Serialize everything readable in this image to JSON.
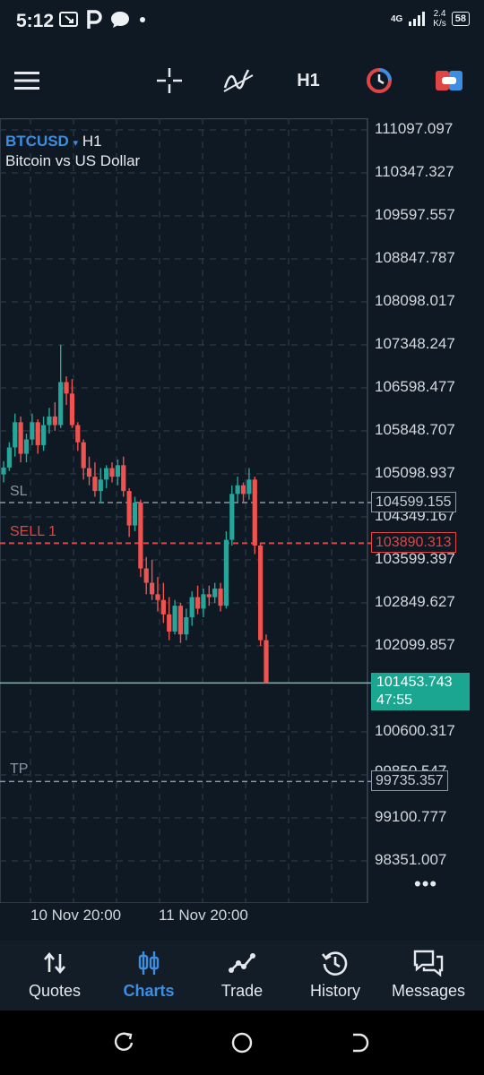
{
  "status_bar": {
    "time": "5:12",
    "network_type": "4G",
    "speed_value": "2.4",
    "speed_unit": "K/s",
    "battery": "58"
  },
  "toolbar": {
    "timeframe": "H1"
  },
  "chart": {
    "symbol": "BTCUSD",
    "symbol_caret": "▾",
    "timeframe": "H1",
    "description": "Bitcoin vs US Dollar",
    "sl_label": "SL",
    "sell_label": "SELL 1",
    "tp_label": "TP",
    "sl_price": "104599.155",
    "sell_price": "103890.313",
    "tp_price": "99735.357",
    "current_price": "101453.743",
    "countdown": "47:55",
    "more": "•••"
  },
  "chart_data": {
    "type": "candlestick",
    "y_ticks": [
      "111097.097",
      "110347.327",
      "109597.557",
      "108847.787",
      "108098.017",
      "107348.247",
      "106598.477",
      "105848.707",
      "105098.937",
      "104349.167",
      "103599.397",
      "102849.627",
      "102099.857",
      "100600.317",
      "99850.547",
      "99100.777",
      "98351.007"
    ],
    "x_ticks": [
      "10 Nov 20:00",
      "11 Nov 20:00"
    ],
    "ylim": [
      98000,
      111400
    ],
    "up_color": "#26a69a",
    "down_color": "#ef5350",
    "candles": [
      [
        105090,
        105320,
        104950,
        105210
      ],
      [
        105210,
        105650,
        105150,
        105560
      ],
      [
        105560,
        106150,
        105400,
        106000
      ],
      [
        106000,
        106100,
        105300,
        105450
      ],
      [
        105450,
        105800,
        105300,
        105700
      ],
      [
        105700,
        106150,
        105600,
        106000
      ],
      [
        106000,
        106050,
        105450,
        105600
      ],
      [
        105600,
        106100,
        105500,
        105950
      ],
      [
        105950,
        106250,
        105800,
        106100
      ],
      [
        106100,
        106350,
        105850,
        105950
      ],
      [
        105950,
        107350,
        105900,
        106700
      ],
      [
        106700,
        106800,
        106300,
        106500
      ],
      [
        106500,
        106750,
        105900,
        105950
      ],
      [
        105950,
        106000,
        105500,
        105650
      ],
      [
        105650,
        105700,
        105000,
        105200
      ],
      [
        105200,
        105400,
        104900,
        105050
      ],
      [
        105050,
        105300,
        104700,
        104800
      ],
      [
        104800,
        105200,
        104600,
        105000
      ],
      [
        105000,
        105250,
        104850,
        105200
      ],
      [
        105200,
        105300,
        104950,
        105050
      ],
      [
        105050,
        105350,
        104900,
        105250
      ],
      [
        105250,
        105400,
        104700,
        104800
      ],
      [
        104800,
        104850,
        104000,
        104200
      ],
      [
        104200,
        104700,
        104100,
        104600
      ],
      [
        104600,
        104650,
        103300,
        103450
      ],
      [
        103450,
        103650,
        103000,
        103200
      ],
      [
        103200,
        103600,
        102900,
        103000
      ],
      [
        103000,
        103300,
        102700,
        102900
      ],
      [
        102900,
        103200,
        102500,
        102650
      ],
      [
        102650,
        102950,
        102200,
        102350
      ],
      [
        102350,
        102900,
        102300,
        102800
      ],
      [
        102800,
        102850,
        102150,
        102300
      ],
      [
        102300,
        102750,
        102200,
        102600
      ],
      [
        102600,
        103050,
        102450,
        102950
      ],
      [
        102950,
        103150,
        102650,
        102750
      ],
      [
        102750,
        103100,
        102600,
        103000
      ],
      [
        103000,
        103150,
        102800,
        102950
      ],
      [
        102950,
        103200,
        102850,
        103100
      ],
      [
        103100,
        103200,
        102700,
        102800
      ],
      [
        102800,
        104100,
        102750,
        103950
      ],
      [
        103950,
        104900,
        103850,
        104750
      ],
      [
        104750,
        105050,
        104600,
        104900
      ],
      [
        104900,
        104950,
        104600,
        104750
      ],
      [
        104750,
        105200,
        104650,
        105000
      ],
      [
        105000,
        105050,
        103700,
        103850
      ],
      [
        103850,
        103900,
        102100,
        102200
      ],
      [
        102200,
        102300,
        101453.743,
        101453.743
      ]
    ]
  },
  "nav": {
    "quotes": "Quotes",
    "charts": "Charts",
    "trade": "Trade",
    "history": "History",
    "messages": "Messages"
  }
}
